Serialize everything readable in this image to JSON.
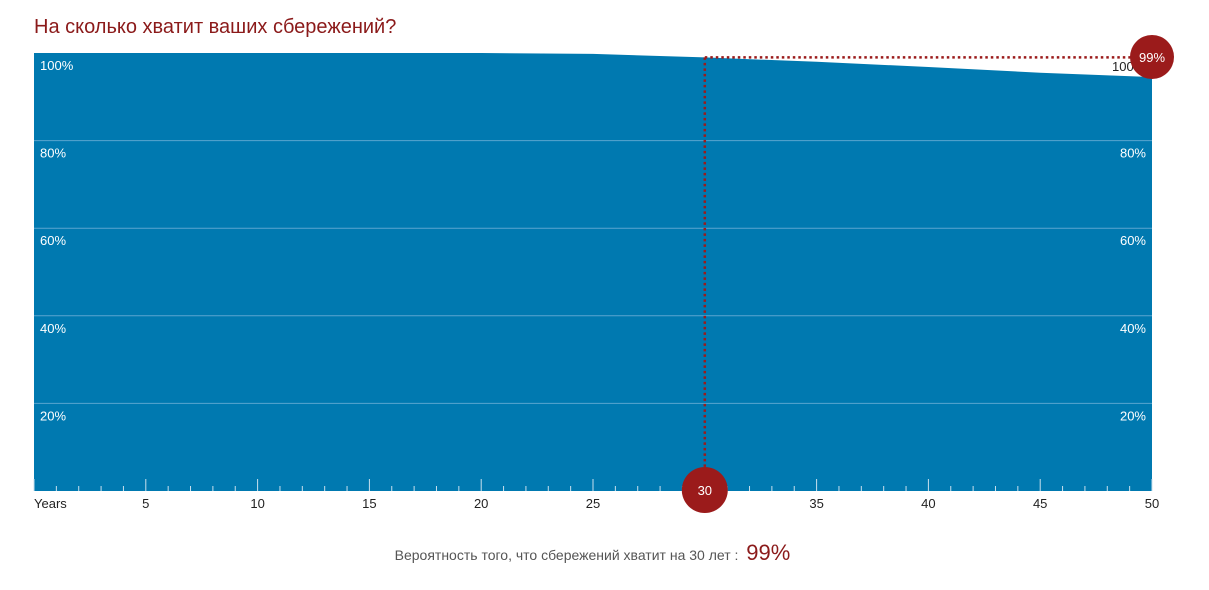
{
  "title": "На сколько хватит ваших сбережений?",
  "summary": {
    "label": "Вероятность того, что сбережений хватит на 30 лет :",
    "value": "99%"
  },
  "chart_data": {
    "type": "area",
    "xlabel": "Years",
    "ylabel": "",
    "xlim": [
      0,
      50
    ],
    "ylim": [
      0,
      100
    ],
    "x_ticks": [
      5,
      10,
      15,
      20,
      25,
      30,
      35,
      40,
      45,
      50
    ],
    "y_ticks": [
      20,
      40,
      60,
      80,
      100
    ],
    "y_tick_labels": [
      "20%",
      "40%",
      "60%",
      "80%",
      "100%"
    ],
    "right_y_tick_labels": [
      "20%",
      "40%",
      "60%",
      "80%",
      "100%"
    ],
    "grid": true,
    "colors": {
      "area": "#0079b0",
      "accent": "#9b1b1b",
      "grid": "#5aa6cf"
    },
    "series": [
      {
        "x": [
          0,
          5,
          10,
          15,
          20,
          25,
          30,
          35,
          40,
          45,
          50
        ],
        "values": [
          100,
          100,
          100,
          100,
          100,
          99.8,
          99,
          98,
          96.8,
          95.5,
          94.5
        ]
      }
    ],
    "selected_year": {
      "x": 30,
      "label": "30"
    },
    "selected_value": {
      "y": 99,
      "label": "99%"
    },
    "right_top_label_partial": "100"
  }
}
